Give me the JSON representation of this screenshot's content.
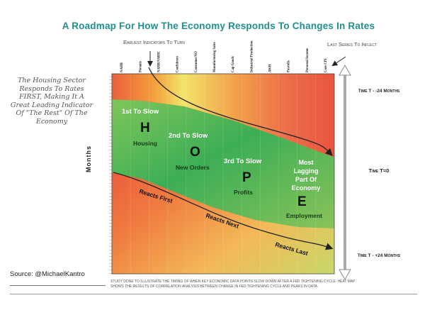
{
  "title": "A Roadmap For How The Economy Responds To Changes In Rates",
  "earliest_label": "Earliest Indicators To Turn",
  "last_label": "Last Series To Inflect",
  "left_note": "The Housing Sector Responds To Rates FIRST, Making It A Great Leading Indicator Of \"The Rest\" Of The Economy",
  "source": "Source: @MichaelKantro",
  "footnote": "Study done to illustrate the timing of when key economic data points slow down after a Fed tightening cycle. Heat map shows the results of correlation analysis between change in Fed tightening cycle and peaks in data.",
  "colors": {
    "title": "#1f8f8f",
    "hot": "#e23b3b",
    "cool": "#2faa56"
  },
  "chart_data": {
    "type": "heatmap",
    "x_categories": [
      "NAHB",
      "Permits",
      "NAHB/NMHC",
      "Confidence",
      "Consumer/NO",
      "Manufacturing Sales",
      "Cap Goods",
      "Industrial Production",
      "AWH",
      "Payrolls",
      "Personal Income",
      "Core CPI"
    ],
    "ylabel": "Months",
    "y_ticks": [
      "Time T - -24 Months",
      "Time T=0",
      "Time T - +24 Months"
    ],
    "annotations": [
      {
        "letter": "H",
        "order": "1st To Slow",
        "sector": "Housing"
      },
      {
        "letter": "O",
        "order": "2nd To Slow",
        "sector": "New Orders"
      },
      {
        "letter": "P",
        "order": "3rd To Slow",
        "sector": "Profits"
      },
      {
        "letter": "E",
        "order": "Most Lagging Part Of Economy",
        "sector": "Employment"
      }
    ],
    "band_labels": [
      "Reacts First",
      "Reacts Next",
      "Reacts Last"
    ]
  }
}
